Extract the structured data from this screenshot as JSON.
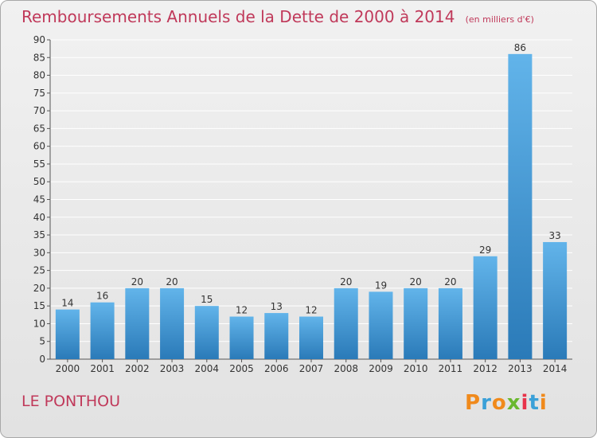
{
  "header": {
    "title": "Remboursements Annuels de la Dette de 2000 à 2014",
    "unit": "(en milliers d'€)"
  },
  "footer": {
    "commune": "LE PONTHOU",
    "logo_text": "Proxiti"
  },
  "colors": {
    "title": "#c0395a",
    "bar_top": "#62b4ea",
    "bar_bottom": "#2a7ab8",
    "grid": "#ffffff",
    "logo_letters": [
      "#f08a1c",
      "#3aa0d8",
      "#f08a1c",
      "#6ab82e",
      "#e8324a",
      "#3aa0d8",
      "#f08a1c"
    ]
  },
  "chart_data": {
    "type": "bar",
    "title": "Remboursements Annuels de la Dette de 2000 à 2014",
    "xlabel": "",
    "ylabel": "",
    "categories": [
      "2000",
      "2001",
      "2002",
      "2003",
      "2004",
      "2005",
      "2006",
      "2007",
      "2008",
      "2009",
      "2010",
      "2011",
      "2012",
      "2013",
      "2014"
    ],
    "values": [
      14,
      16,
      20,
      20,
      15,
      12,
      13,
      12,
      20,
      19,
      20,
      20,
      29,
      86,
      33
    ],
    "ylim": [
      0,
      90
    ],
    "yticks": [
      "0",
      "5",
      "10",
      "15",
      "20",
      "25",
      "30",
      "35",
      "40",
      "45",
      "50",
      "55",
      "60",
      "65",
      "70",
      "75",
      "80",
      "85",
      "90"
    ],
    "grid": true,
    "data_labels": true
  }
}
